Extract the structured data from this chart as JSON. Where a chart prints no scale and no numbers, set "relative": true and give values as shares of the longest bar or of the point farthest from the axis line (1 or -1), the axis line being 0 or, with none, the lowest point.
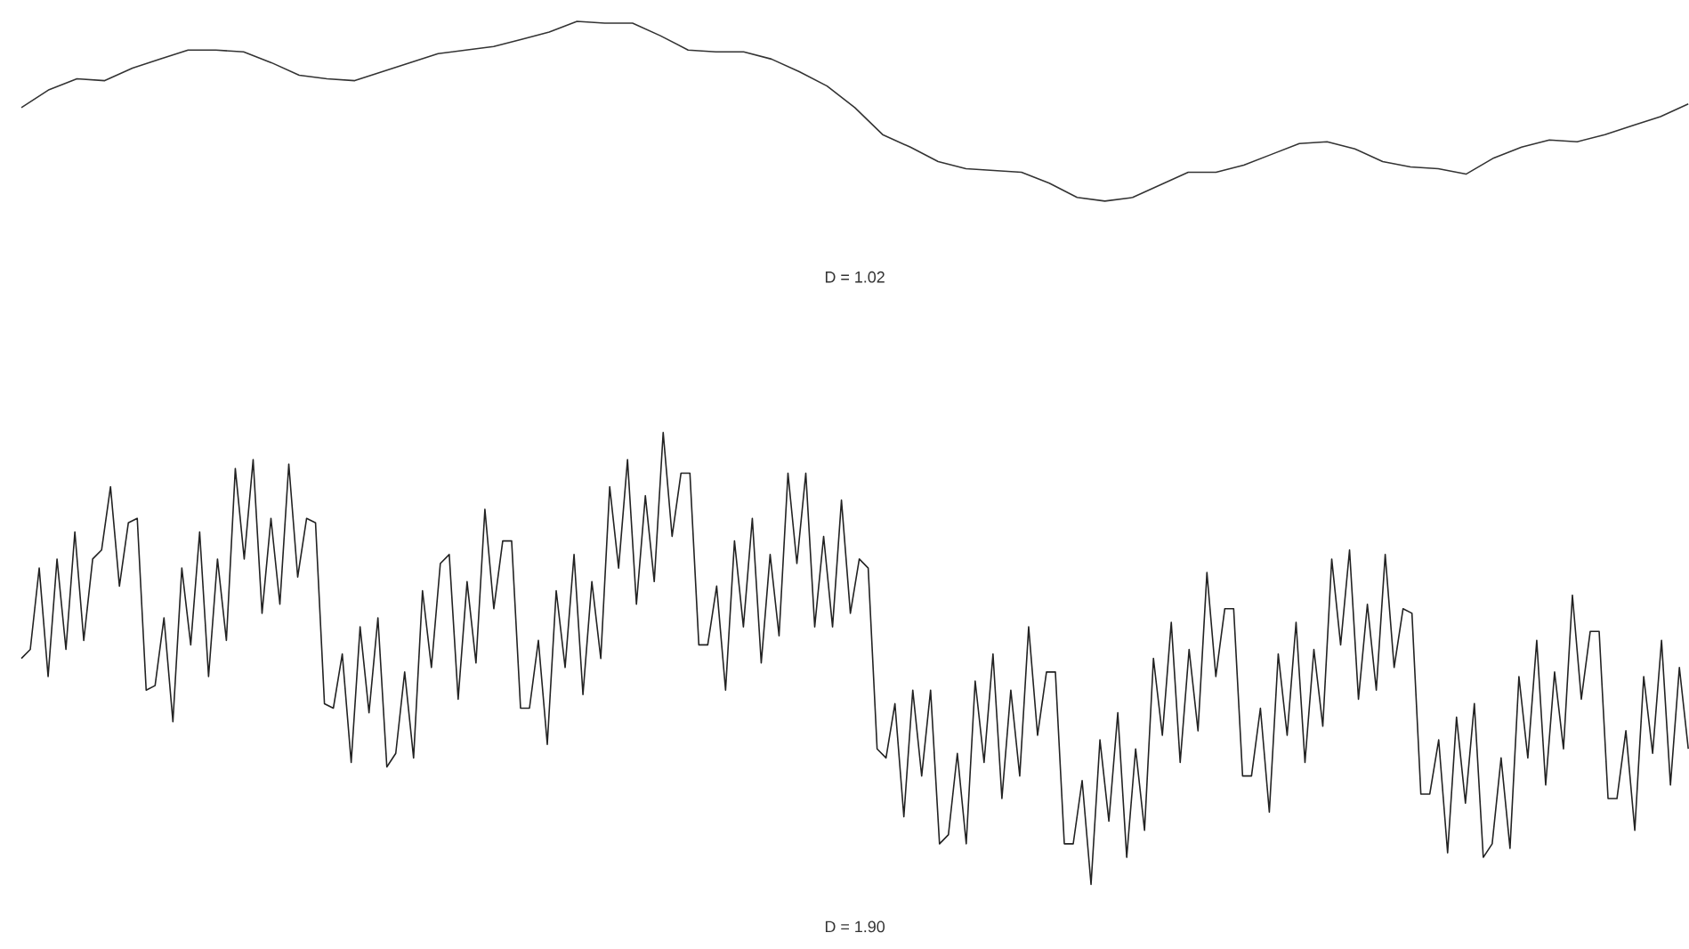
{
  "chart_data": [
    {
      "type": "line",
      "relative": true,
      "color": "#333333",
      "xlabel": "D = 1.02",
      "categories": [
        null,
        null,
        null,
        null,
        null,
        null,
        null,
        null,
        null,
        null,
        null,
        null,
        null,
        null,
        null,
        null,
        null,
        null,
        null,
        null,
        null,
        null,
        null,
        null,
        null,
        null,
        null,
        null,
        null,
        null,
        null,
        null,
        null,
        null,
        null,
        null,
        null,
        null,
        null,
        null,
        null,
        null,
        null,
        null,
        null,
        null,
        null,
        null,
        null,
        null,
        null,
        null,
        null,
        null,
        null,
        null,
        null,
        null,
        null,
        null,
        null
      ],
      "values": [
        0.52,
        0.62,
        0.68,
        0.67,
        0.74,
        0.79,
        0.84,
        0.84,
        0.83,
        0.77,
        0.7,
        0.68,
        0.67,
        0.72,
        0.77,
        0.82,
        0.84,
        0.86,
        0.9,
        0.94,
        1.0,
        0.99,
        0.99,
        0.92,
        0.84,
        0.83,
        0.83,
        0.79,
        0.72,
        0.64,
        0.52,
        0.37,
        0.3,
        0.22,
        0.18,
        0.17,
        0.16,
        0.1,
        0.02,
        0,
        0.02,
        0.09,
        0.16,
        0.16,
        0.2,
        0.26,
        0.32,
        0.33,
        0.29,
        0.22,
        0.19,
        0.18,
        0.15,
        0.24,
        0.3,
        0.34,
        0.33,
        0.37,
        0.42,
        0.47,
        0.54
      ]
    },
    {
      "type": "line",
      "relative": true,
      "color": "#222222",
      "xlabel": "D = 1.90",
      "categories": [
        null,
        null,
        null,
        null,
        null,
        null,
        null,
        null,
        null,
        null,
        null,
        null,
        null,
        null,
        null,
        null,
        null,
        null,
        null,
        null,
        null,
        null,
        null,
        null,
        null,
        null,
        null,
        null,
        null,
        null,
        null,
        null,
        null,
        null,
        null,
        null,
        null,
        null,
        null,
        null,
        null,
        null,
        null,
        null,
        null,
        null,
        null,
        null,
        null,
        null,
        null,
        null,
        null,
        null,
        null,
        null,
        null,
        null,
        null,
        null,
        null,
        null,
        null,
        null,
        null,
        null,
        null,
        null,
        null,
        null,
        null,
        null,
        null,
        null,
        null,
        null,
        null,
        null,
        null,
        null,
        null,
        null,
        null,
        null,
        null,
        null,
        null,
        null,
        null,
        null,
        null,
        null,
        null,
        null,
        null,
        null,
        null,
        null,
        null,
        null,
        null,
        null,
        null,
        null,
        null,
        null,
        null,
        null,
        null,
        null,
        null,
        null,
        null,
        null,
        null,
        null,
        null,
        null,
        null,
        null,
        null,
        null,
        null,
        null,
        null,
        null,
        null,
        null,
        null,
        null,
        null,
        null,
        null,
        null,
        null,
        null,
        null,
        null,
        null,
        null,
        null,
        null,
        null,
        null,
        null,
        null,
        null,
        null,
        null,
        null,
        null,
        null,
        null,
        null,
        null,
        null,
        null,
        null,
        null,
        null,
        null,
        null,
        null,
        null,
        null,
        null,
        null,
        null,
        null,
        null,
        null,
        null,
        null,
        null,
        null,
        null,
        null,
        null,
        null,
        null,
        null,
        null,
        null,
        null,
        null,
        null,
        null,
        null
      ],
      "values": [
        0.5,
        0.52,
        0.7,
        0.46,
        0.72,
        0.52,
        0.78,
        0.54,
        0.72,
        0.74,
        0.88,
        0.66,
        0.8,
        0.81,
        0.43,
        0.44,
        0.59,
        0.36,
        0.7,
        0.53,
        0.78,
        0.46,
        0.72,
        0.54,
        0.92,
        0.72,
        0.94,
        0.6,
        0.81,
        0.62,
        0.93,
        0.68,
        0.81,
        0.8,
        0.4,
        0.39,
        0.51,
        0.27,
        0.57,
        0.38,
        0.59,
        0.26,
        0.29,
        0.47,
        0.28,
        0.65,
        0.48,
        0.71,
        0.73,
        0.41,
        0.67,
        0.49,
        0.83,
        0.61,
        0.76,
        0.76,
        0.39,
        0.39,
        0.54,
        0.31,
        0.65,
        0.48,
        0.73,
        0.42,
        0.67,
        0.5,
        0.88,
        0.7,
        0.94,
        0.62,
        0.86,
        0.67,
        1.0,
        0.77,
        0.91,
        0.91,
        0.53,
        0.53,
        0.66,
        0.43,
        0.76,
        0.57,
        0.81,
        0.49,
        0.73,
        0.55,
        0.91,
        0.71,
        0.91,
        0.57,
        0.77,
        0.57,
        0.85,
        0.6,
        0.72,
        0.7,
        0.3,
        0.28,
        0.4,
        0.15,
        0.43,
        0.24,
        0.43,
        0.09,
        0.11,
        0.29,
        0.09,
        0.45,
        0.27,
        0.51,
        0.19,
        0.43,
        0.24,
        0.57,
        0.33,
        0.47,
        0.47,
        0.09,
        0.09,
        0.23,
        0,
        0.32,
        0.14,
        0.38,
        0.06,
        0.3,
        0.12,
        0.5,
        0.33,
        0.58,
        0.27,
        0.52,
        0.34,
        0.69,
        0.46,
        0.61,
        0.61,
        0.24,
        0.24,
        0.39,
        0.16,
        0.51,
        0.33,
        0.58,
        0.27,
        0.52,
        0.35,
        0.72,
        0.53,
        0.74,
        0.41,
        0.62,
        0.43,
        0.73,
        0.48,
        0.61,
        0.6,
        0.2,
        0.2,
        0.32,
        0.07,
        0.37,
        0.18,
        0.4,
        0.06,
        0.09,
        0.28,
        0.08,
        0.46,
        0.28,
        0.54,
        0.22,
        0.47,
        0.3,
        0.64,
        0.41,
        0.56,
        0.56,
        0.19,
        0.19,
        0.34,
        0.12,
        0.46,
        0.29,
        0.54,
        0.22,
        0.48,
        0.3
      ]
    }
  ]
}
